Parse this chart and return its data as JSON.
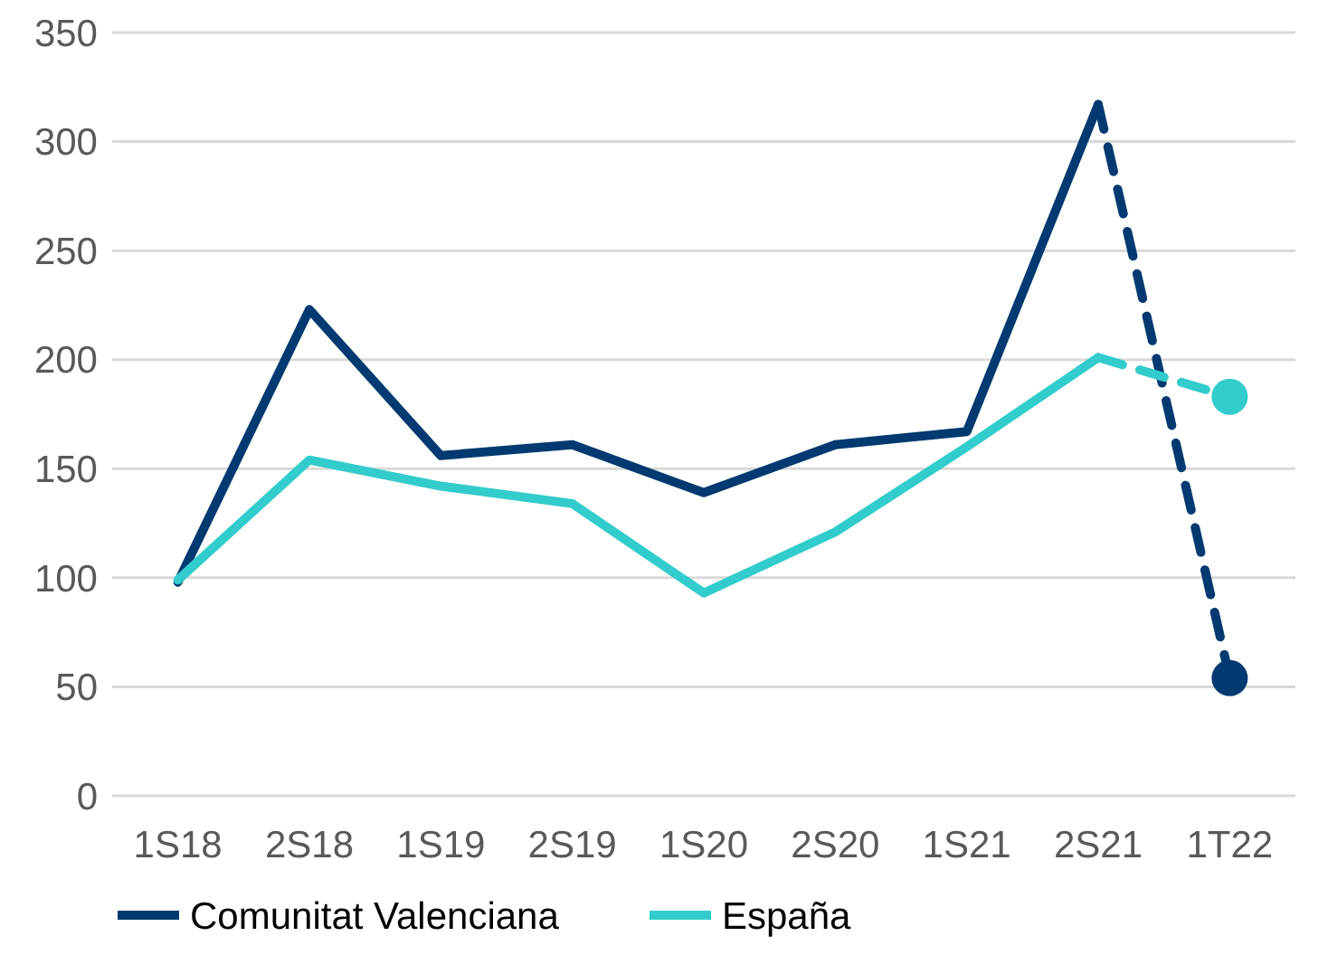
{
  "chart_data": {
    "type": "line",
    "categories": [
      "1S18",
      "2S18",
      "1S19",
      "2S19",
      "1S20",
      "2S20",
      "1S21",
      "2S21",
      "1T22"
    ],
    "ylim": [
      0,
      350
    ],
    "yticks": [
      0,
      50,
      100,
      150,
      200,
      250,
      300,
      350
    ],
    "grid": "y",
    "legend": "bottom",
    "marker": "none",
    "line_style": "solid",
    "series": [
      {
        "name": "Comunitat Valenciana",
        "color": "#003a70",
        "values": [
          98,
          223,
          156,
          161,
          139,
          161,
          167,
          317,
          null
        ]
      },
      {
        "name": "España",
        "color": "#33cccc",
        "values": [
          99,
          154,
          142,
          134,
          93,
          121,
          160,
          201,
          null
        ]
      },
      {
        "color": "#003a70",
        "values": [
          null,
          null,
          null,
          null,
          null,
          null,
          null,
          317,
          54
        ],
        "line_style": "dashed",
        "marker": "circle"
      },
      {
        "color": "#33cccc",
        "values": [
          null,
          null,
          null,
          null,
          null,
          null,
          null,
          201,
          183
        ],
        "line_style": "dashed",
        "marker": "circle"
      }
    ]
  }
}
